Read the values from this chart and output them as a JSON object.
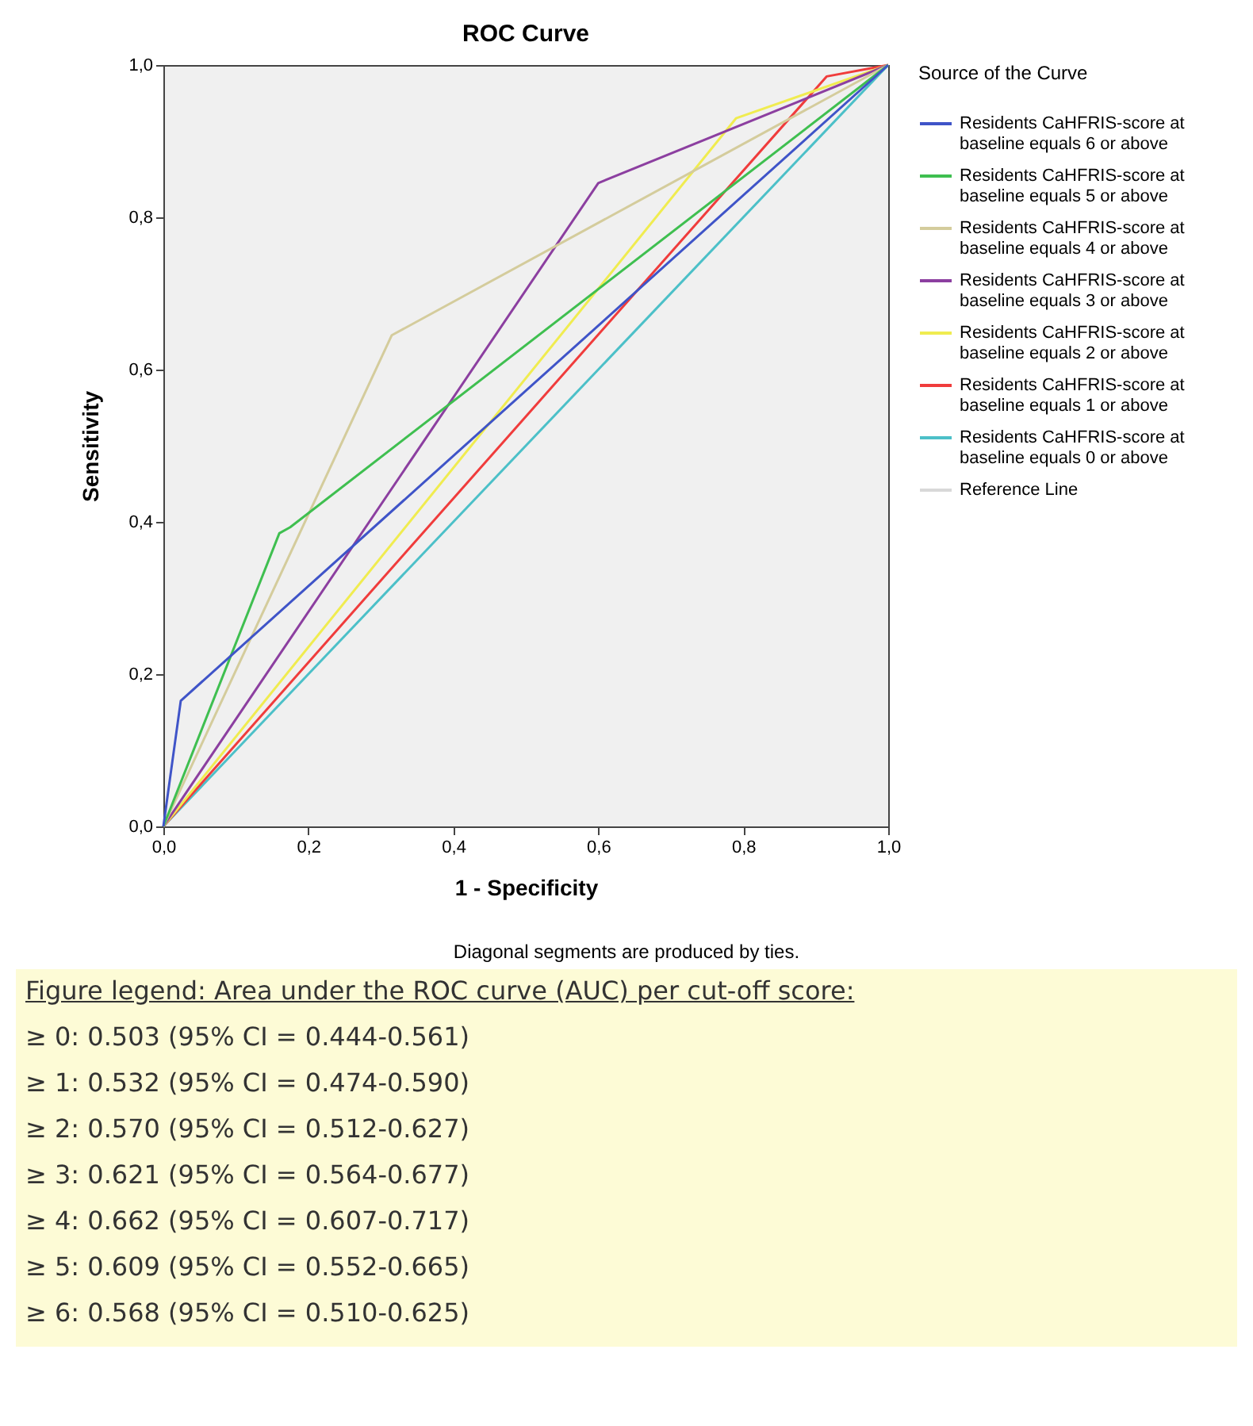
{
  "chart_data": {
    "type": "line",
    "title": "ROC Curve",
    "xlabel": "1 - Specificity",
    "ylabel": "Sensitivity",
    "legend_title": "Source of the Curve",
    "legend": "right",
    "grid": false,
    "marker": "none",
    "line_style": "solid",
    "xlim": [
      0,
      1
    ],
    "ylim": [
      0,
      1
    ],
    "xticks": [
      {
        "value": 0,
        "label": "0,0"
      },
      {
        "value": 0.2,
        "label": "0,2"
      },
      {
        "value": 0.4,
        "label": "0,4"
      },
      {
        "value": 0.6,
        "label": "0,6"
      },
      {
        "value": 0.8,
        "label": "0,8"
      },
      {
        "value": 1,
        "label": "1,0"
      }
    ],
    "yticks": [
      {
        "value": 0,
        "label": "0,0"
      },
      {
        "value": 0.2,
        "label": "0,2"
      },
      {
        "value": 0.4,
        "label": "0,4"
      },
      {
        "value": 0.6,
        "label": "0,6"
      },
      {
        "value": 0.8,
        "label": "0,8"
      },
      {
        "value": 1,
        "label": "1,0"
      }
    ],
    "series": [
      {
        "name": "Residents CaHFRIS-score at baseline equals 6 or above",
        "color": "#3f54c8",
        "x": [
          0,
          0.024,
          1
        ],
        "values": [
          0,
          0.165,
          1
        ]
      },
      {
        "name": "Residents CaHFRIS-score at baseline equals 5 or above",
        "color": "#3fbf50",
        "x": [
          0,
          0.16,
          0.175,
          1
        ],
        "values": [
          0,
          0.385,
          0.393,
          1
        ]
      },
      {
        "name": "Residents CaHFRIS-score at baseline equals 4 or above",
        "color": "#d4cc9c",
        "x": [
          0,
          0.315,
          1
        ],
        "values": [
          0,
          0.645,
          1
        ]
      },
      {
        "name": "Residents CaHFRIS-score at baseline equals 3 or above",
        "color": "#8c3fa0",
        "x": [
          0,
          0.6,
          1
        ],
        "values": [
          0,
          0.845,
          1
        ]
      },
      {
        "name": "Residents CaHFRIS-score at baseline equals 2 or above",
        "color": "#f0ec50",
        "x": [
          0,
          0.79,
          1
        ],
        "values": [
          0,
          0.93,
          1
        ]
      },
      {
        "name": "Residents CaHFRIS-score at baseline equals 1 or above",
        "color": "#f03c3c",
        "x": [
          0,
          0.915,
          1
        ],
        "values": [
          0,
          0.985,
          1
        ]
      },
      {
        "name": "Residents CaHFRIS-score at baseline equals 0 or above",
        "color": "#4cc0c8",
        "x": [
          0,
          1
        ],
        "values": [
          0,
          1
        ]
      },
      {
        "name": "Reference Line",
        "color": "#d8d8d8"
      }
    ],
    "annotations": [
      "Diagonal segments are produced by ties.",
      "Figure legend: Area under the ROC curve (AUC) per cut-off score:",
      "≥ 0: 0.503 (95% CI = 0.444-0.561)",
      "≥ 1: 0.532 (95% CI = 0.474-0.590)",
      "≥ 2: 0.570 (95% CI = 0.512-0.627)",
      "≥ 3: 0.621 (95% CI = 0.564-0.677)",
      "≥ 4: 0.662 (95% CI = 0.607-0.717)",
      "≥ 5: 0.609 (95% CI = 0.552-0.665)",
      "≥ 6: 0.568 (95% CI = 0.510-0.625)"
    ]
  }
}
